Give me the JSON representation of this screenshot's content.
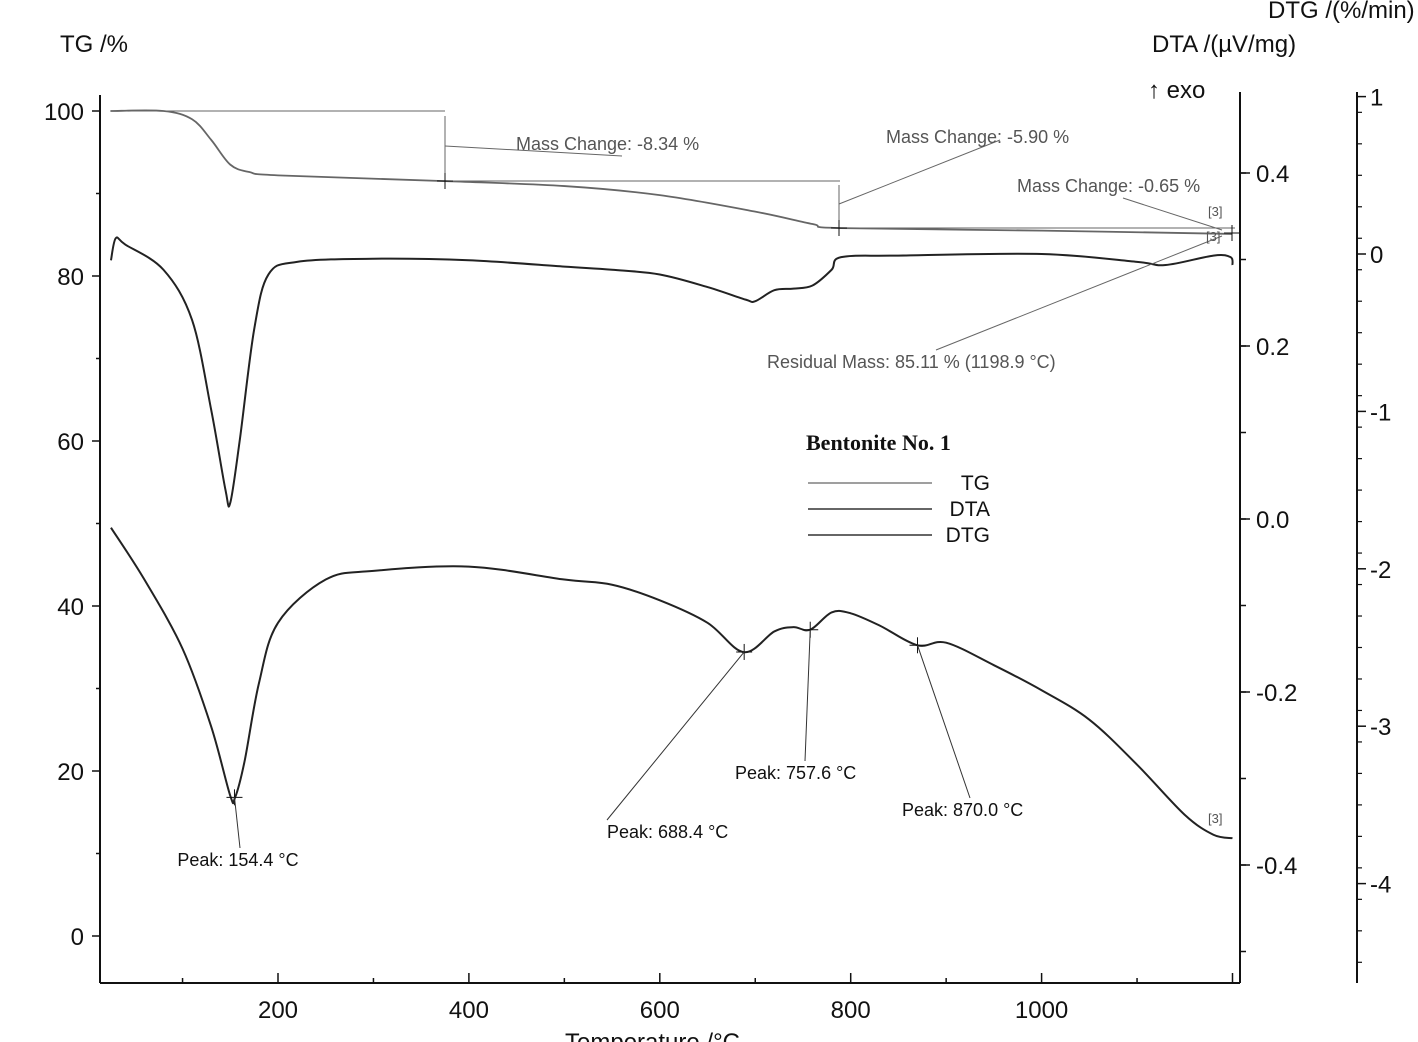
{
  "chart_data": {
    "type": "line",
    "title": "Bentonite No. 1",
    "xlabel": "Temperature /°C",
    "xlim": [
      13,
      1208
    ],
    "xticks": [
      "200",
      "400",
      "600",
      "800",
      "1000"
    ],
    "axes": {
      "tg": {
        "label": "TG /%",
        "ylim": [
          -5.7,
          102
        ],
        "ticks": [
          "100",
          "80",
          "60",
          "40",
          "20",
          "0"
        ]
      },
      "dta": {
        "label": "DTA /(µV/mg)",
        "exo": "↑ exo",
        "ylim": [
          -0.535,
          0.49
        ],
        "ticks": [
          "0.4",
          "0.2",
          "0.0",
          "-0.2",
          "-0.4"
        ]
      },
      "dtg": {
        "label": "DTG /(%/min)",
        "ylim": [
          -4.6,
          1.0
        ],
        "ticks": [
          "1",
          "0",
          "-1",
          "-2",
          "-3",
          "-4"
        ]
      }
    },
    "legend": {
      "placement": "center",
      "entries": [
        "TG",
        "DTA",
        "DTG"
      ]
    },
    "series": [
      {
        "name": "TG",
        "axis": "tg",
        "color": "#666666",
        "x": [
          25,
          80,
          110,
          130,
          150,
          170,
          200,
          375,
          500,
          600,
          700,
          760,
          790,
          1000,
          1200
        ],
        "y": [
          100,
          100,
          99,
          96.5,
          93.5,
          92.6,
          92.2,
          91.5,
          90.9,
          89.8,
          87.8,
          86.3,
          85.8,
          85.5,
          85.1
        ]
      },
      {
        "name": "DTG",
        "axis": "dtg",
        "color": "#222222",
        "x": [
          25,
          30,
          40,
          80,
          110,
          130,
          145,
          150,
          160,
          175,
          190,
          220,
          300,
          400,
          500,
          550,
          600,
          650,
          690,
          700,
          720,
          740,
          760,
          780,
          790,
          850,
          1000,
          1100,
          1130,
          1180,
          1198,
          1200
        ],
        "y": [
          -0.04,
          0.1,
          0.06,
          -0.1,
          -0.42,
          -0.99,
          -1.5,
          -1.58,
          -1.18,
          -0.48,
          -0.13,
          -0.05,
          -0.03,
          -0.04,
          -0.08,
          -0.1,
          -0.13,
          -0.21,
          -0.29,
          -0.3,
          -0.23,
          -0.22,
          -0.2,
          -0.1,
          -0.02,
          -0.01,
          0,
          -0.05,
          -0.07,
          -0.01,
          -0.02,
          -0.07
        ]
      },
      {
        "name": "DTA",
        "axis": "dta",
        "color": "#222222",
        "x": [
          25,
          60,
          100,
          130,
          150,
          155,
          165,
          180,
          200,
          250,
          300,
          400,
          500,
          550,
          600,
          650,
          688,
          720,
          740,
          757.6,
          780,
          800,
          830,
          870,
          900,
          950,
          1000,
          1050,
          1100,
          1150,
          1180,
          1200
        ],
        "y": [
          -0.01,
          -0.07,
          -0.15,
          -0.24,
          -0.32,
          -0.322,
          -0.28,
          -0.19,
          -0.12,
          -0.07,
          -0.06,
          -0.055,
          -0.07,
          -0.076,
          -0.094,
          -0.12,
          -0.154,
          -0.13,
          -0.125,
          -0.128,
          -0.108,
          -0.109,
          -0.123,
          -0.146,
          -0.143,
          -0.169,
          -0.198,
          -0.232,
          -0.284,
          -0.342,
          -0.365,
          -0.369
        ]
      }
    ],
    "annotations": [
      {
        "text": "Mass Change: -8.34 %",
        "series": "TG",
        "from": 25,
        "to": 375
      },
      {
        "text": "Mass Change: -5.90 %",
        "series": "TG",
        "from": 375,
        "to": 790
      },
      {
        "text": "Mass Change: -0.65 %",
        "series": "TG",
        "from": 790,
        "to": 1200
      },
      {
        "text": "Residual Mass: 85.11 % (1198.9 °C)",
        "series": "TG",
        "at": 1198.9
      },
      {
        "text": "Peak: 154.4 °C",
        "series": "DTA",
        "at": 154.4
      },
      {
        "text": "Peak: 688.4 °C",
        "series": "DTA",
        "at": 688.4
      },
      {
        "text": "Peak: 757.6 °C",
        "series": "DTA",
        "at": 757.6
      },
      {
        "text": "Peak: 870.0 °C",
        "series": "DTA",
        "at": 870.0
      }
    ],
    "segment_markers": [
      "[3]",
      "[3]",
      "[3]"
    ]
  }
}
